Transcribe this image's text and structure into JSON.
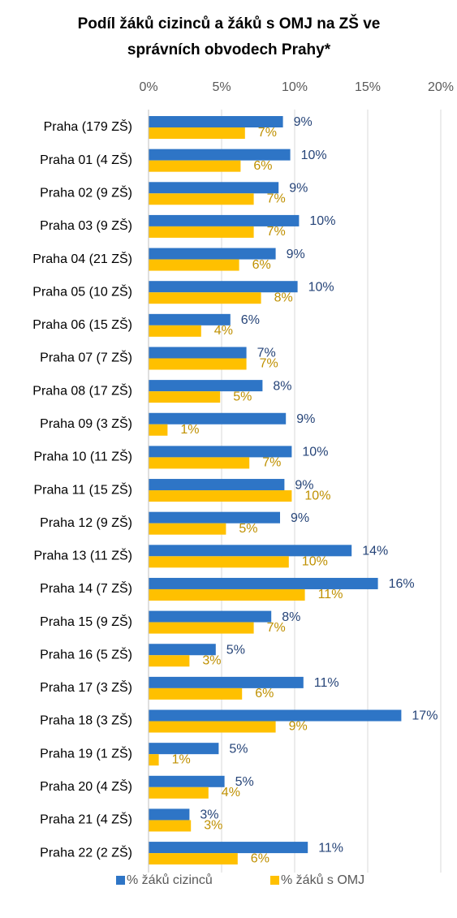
{
  "chart_data": {
    "type": "bar",
    "orientation": "horizontal",
    "title": [
      "Podíl žáků cizinců a žáků s OMJ na ZŠ ve",
      "správních obvodech Prahy*"
    ],
    "categories": [
      "Praha (179 ZŠ)",
      "Praha 01 (4 ZŠ)",
      "Praha 02 (9 ZŠ)",
      "Praha 03 (9 ZŠ)",
      "Praha 04 (21 ZŠ)",
      "Praha 05 (10 ZŠ)",
      "Praha 06 (15 ZŠ)",
      "Praha 07 (7 ZŠ)",
      "Praha 08 (17 ZŠ)",
      "Praha 09 (3 ZŠ)",
      "Praha 10 (11 ZŠ)",
      "Praha 11 (15 ZŠ)",
      "Praha 12 (9 ZŠ)",
      "Praha 13 (11 ZŠ)",
      "Praha 14 (7 ZŠ)",
      "Praha 15 (9 ZŠ)",
      "Praha 16 (5 ZŠ)",
      "Praha 17 (3 ZŠ)",
      "Praha 18 (3 ZŠ)",
      "Praha 19 (1 ZŠ)",
      "Praha 20 (4 ZŠ)",
      "Praha 21 (4 ZŠ)",
      "Praha 22 (2 ZŠ)"
    ],
    "series": [
      {
        "name": "% žáků cizinců",
        "color": "#2E75C6",
        "label_color": "#264478",
        "values": [
          9.2,
          9.7,
          8.9,
          10.3,
          8.7,
          10.2,
          5.6,
          6.7,
          7.8,
          9.4,
          9.8,
          9.3,
          9.0,
          13.9,
          15.7,
          8.4,
          4.6,
          10.6,
          17.3,
          4.8,
          5.2,
          2.8,
          10.9
        ],
        "value_labels": [
          "9%",
          "10%",
          "9%",
          "10%",
          "9%",
          "10%",
          "6%",
          "7%",
          "8%",
          "9%",
          "10%",
          "9%",
          "9%",
          "14%",
          "16%",
          "8%",
          "5%",
          "11%",
          "17%",
          "5%",
          "5%",
          "3%",
          "11%"
        ]
      },
      {
        "name": "% žáků s OMJ",
        "color": "#FFC000",
        "label_color": "#BF9000",
        "values": [
          6.6,
          6.3,
          7.2,
          7.2,
          6.2,
          7.7,
          3.6,
          6.7,
          4.9,
          1.3,
          6.9,
          9.8,
          5.3,
          9.6,
          10.7,
          7.2,
          2.8,
          6.4,
          8.7,
          0.7,
          4.1,
          2.9,
          6.1
        ],
        "value_labels": [
          "7%",
          "6%",
          "7%",
          "7%",
          "6%",
          "8%",
          "4%",
          "7%",
          "5%",
          "1%",
          "7%",
          "10%",
          "5%",
          "10%",
          "11%",
          "7%",
          "3%",
          "6%",
          "9%",
          "1%",
          "4%",
          "3%",
          "6%"
        ]
      }
    ],
    "xlim": [
      0,
      20
    ],
    "xticks": [
      {
        "value": 0,
        "label": "0%"
      },
      {
        "value": 5,
        "label": "5%"
      },
      {
        "value": 10,
        "label": "10%"
      },
      {
        "value": 15,
        "label": "15%"
      },
      {
        "value": 20,
        "label": "20%"
      }
    ],
    "grid": true,
    "legend": "bottom"
  }
}
